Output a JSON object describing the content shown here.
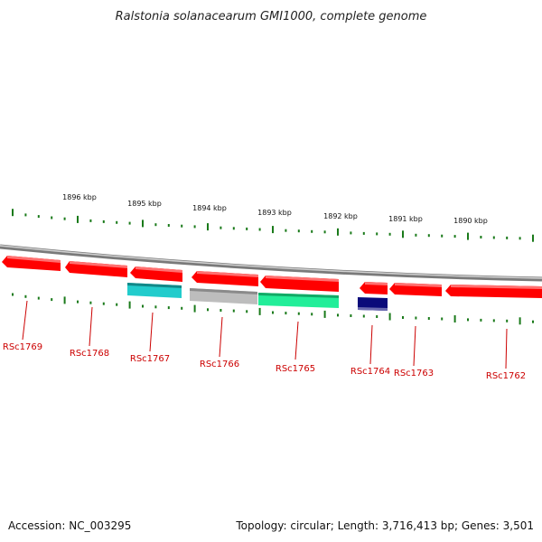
{
  "title": "Ralstonia solanacearum GMI1000, complete genome",
  "footer": {
    "accession": "Accession: NC_003295",
    "summary": "Topology: circular; Length: 3,716,413 bp; Genes: 3,501"
  },
  "kbp_labels": [
    "1896 kbp",
    "1895 kbp",
    "1894 kbp",
    "1893 kbp",
    "1892 kbp",
    "1891 kbp",
    "1890 kbp"
  ],
  "genes": [
    {
      "id": "RSc1769",
      "strand": "forward",
      "color": "#ff0000"
    },
    {
      "id": "RSc1768",
      "strand": "forward",
      "color": "#ff0000"
    },
    {
      "id": "RSc1767",
      "strand": "forward",
      "color": "#ff0000"
    },
    {
      "id": "RSc1766",
      "strand": "forward",
      "color": "#ff0000"
    },
    {
      "id": "RSc1765",
      "strand": "forward",
      "color": "#ff0000"
    },
    {
      "id": "RSc1764",
      "strand": "forward",
      "color": "#ff0000"
    },
    {
      "id": "RSc1763",
      "strand": "forward",
      "color": "#ff0000"
    },
    {
      "id": "RSc1762",
      "strand": "forward",
      "color": "#ff0000"
    }
  ],
  "features": [
    {
      "color": "#22cccc"
    },
    {
      "color": "#bdbdbd"
    },
    {
      "color": "#22ee99"
    },
    {
      "color": "#0a0a7a"
    }
  ],
  "colors": {
    "backbone": "#8c8c8c",
    "tick": "#1a7a1a",
    "gene_label": "#cc0000"
  }
}
